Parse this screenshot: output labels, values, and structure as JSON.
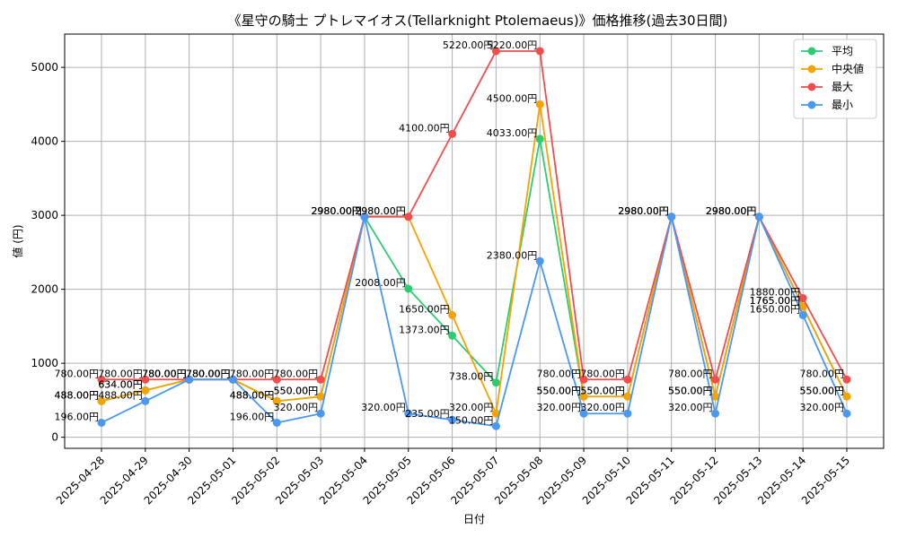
{
  "chart_data": {
    "type": "line",
    "title": "《星守の騎士 プトレマイオス(Tellarknight Ptolemaeus)》価格推移(過去30日間)",
    "xlabel": "日付",
    "ylabel": "値 (円)",
    "ylim": [
      -150,
      5450
    ],
    "yticks": [
      0,
      1000,
      2000,
      3000,
      4000,
      5000
    ],
    "grid": true,
    "legend_position": "top-right",
    "categories": [
      "2025-04-28",
      "2025-04-29",
      "2025-04-30",
      "2025-05-01",
      "2025-05-02",
      "2025-05-03",
      "2025-05-04",
      "2025-05-05",
      "2025-05-06",
      "2025-05-07",
      "2025-05-08",
      "2025-05-09",
      "2025-05-10",
      "2025-05-11",
      "2025-05-12",
      "2025-05-13",
      "2025-05-14",
      "2025-05-15"
    ],
    "series": [
      {
        "key": "avg",
        "name": "平均",
        "color": "#2ecc71",
        "values": [
          488,
          634,
          780,
          780,
          488,
          550,
          2980,
          2008,
          1373,
          738,
          4033,
          550,
          550,
          2980,
          550,
          2980,
          1765,
          550
        ]
      },
      {
        "key": "median",
        "name": "中央値",
        "color": "#f5a300",
        "values": [
          488,
          634,
          780,
          780,
          488,
          550,
          2980,
          2980,
          1650,
          320,
          4500,
          550,
          550,
          2980,
          550,
          2980,
          1765,
          550
        ]
      },
      {
        "key": "max",
        "name": "最大",
        "color": "#f04e4e",
        "values": [
          780,
          780,
          780,
          780,
          780,
          780,
          2980,
          2980,
          4100,
          5220,
          5220,
          780,
          780,
          2980,
          780,
          2980,
          1880,
          780
        ]
      },
      {
        "key": "min",
        "name": "最小",
        "color": "#4a98f0",
        "values": [
          196,
          488,
          780,
          780,
          196,
          320,
          2980,
          320,
          235,
          150,
          2380,
          320,
          320,
          2980,
          320,
          2980,
          1650,
          320
        ]
      }
    ],
    "label_suffix": "円"
  }
}
